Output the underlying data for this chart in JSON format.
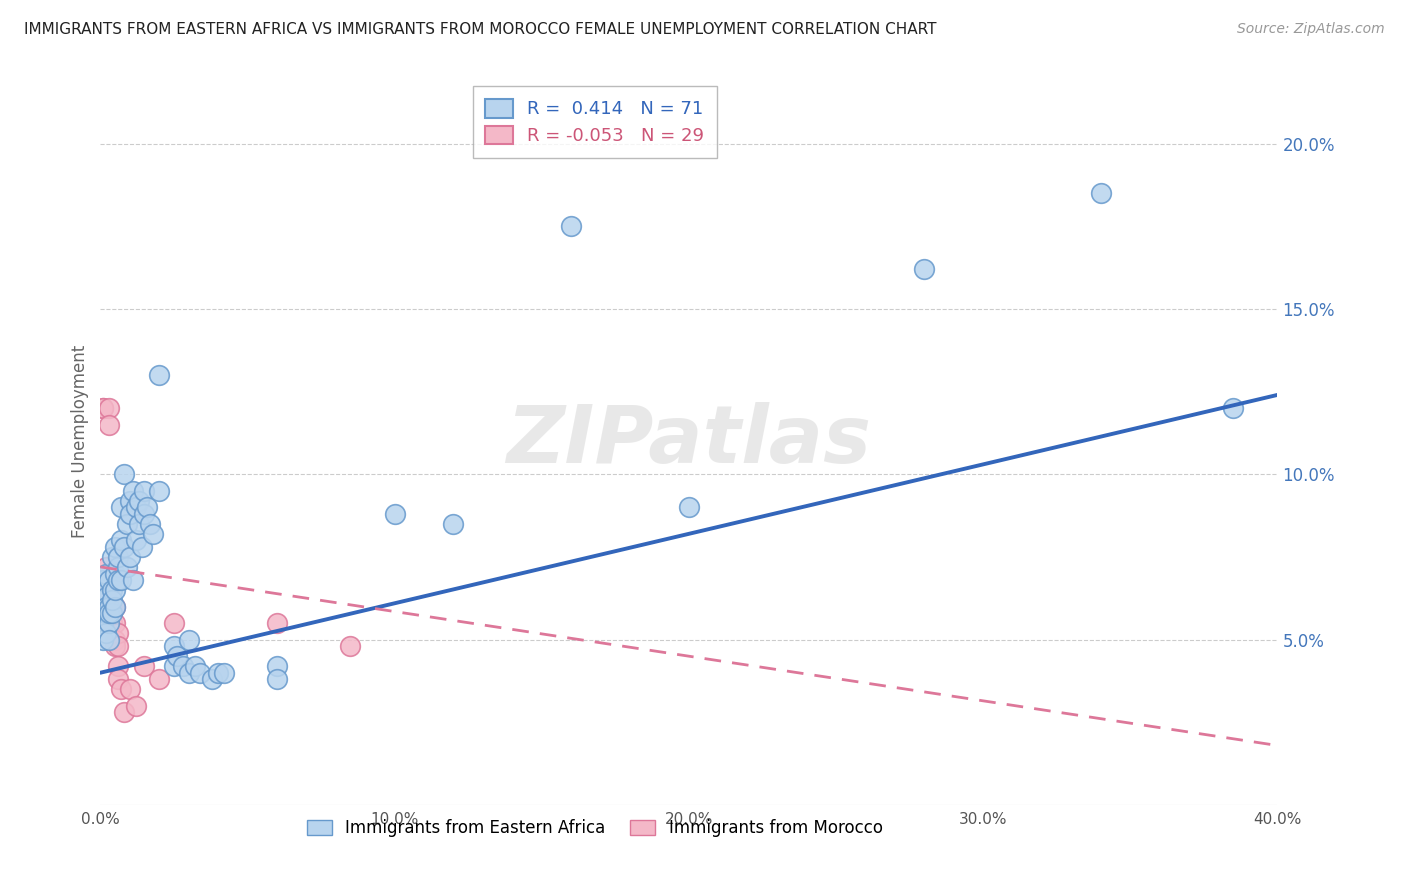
{
  "title": "IMMIGRANTS FROM EASTERN AFRICA VS IMMIGRANTS FROM MOROCCO FEMALE UNEMPLOYMENT CORRELATION CHART",
  "source": "Source: ZipAtlas.com",
  "xlabel_blue": "Immigrants from Eastern Africa",
  "xlabel_pink": "Immigrants from Morocco",
  "ylabel": "Female Unemployment",
  "r_blue": 0.414,
  "n_blue": 71,
  "r_pink": -0.053,
  "n_pink": 29,
  "color_blue": "#b8d4ee",
  "color_blue_edge": "#6699cc",
  "color_blue_line": "#3366bb",
  "color_pink": "#f4b8c8",
  "color_pink_edge": "#dd7799",
  "color_pink_line": "#dd7799",
  "watermark": "ZIPatlas",
  "blue_scatter": [
    [
      0.001,
      0.068
    ],
    [
      0.001,
      0.06
    ],
    [
      0.001,
      0.055
    ],
    [
      0.001,
      0.05
    ],
    [
      0.001,
      0.065
    ],
    [
      0.001,
      0.062
    ],
    [
      0.002,
      0.07
    ],
    [
      0.002,
      0.058
    ],
    [
      0.002,
      0.063
    ],
    [
      0.002,
      0.06
    ],
    [
      0.002,
      0.052
    ],
    [
      0.003,
      0.068
    ],
    [
      0.003,
      0.055
    ],
    [
      0.003,
      0.06
    ],
    [
      0.003,
      0.058
    ],
    [
      0.003,
      0.05
    ],
    [
      0.004,
      0.075
    ],
    [
      0.004,
      0.065
    ],
    [
      0.004,
      0.058
    ],
    [
      0.004,
      0.062
    ],
    [
      0.005,
      0.07
    ],
    [
      0.005,
      0.078
    ],
    [
      0.005,
      0.06
    ],
    [
      0.005,
      0.065
    ],
    [
      0.006,
      0.072
    ],
    [
      0.006,
      0.068
    ],
    [
      0.006,
      0.075
    ],
    [
      0.007,
      0.08
    ],
    [
      0.007,
      0.09
    ],
    [
      0.007,
      0.068
    ],
    [
      0.008,
      0.1
    ],
    [
      0.008,
      0.078
    ],
    [
      0.009,
      0.085
    ],
    [
      0.009,
      0.072
    ],
    [
      0.01,
      0.092
    ],
    [
      0.01,
      0.088
    ],
    [
      0.01,
      0.075
    ],
    [
      0.011,
      0.095
    ],
    [
      0.011,
      0.068
    ],
    [
      0.012,
      0.09
    ],
    [
      0.012,
      0.08
    ],
    [
      0.013,
      0.092
    ],
    [
      0.013,
      0.085
    ],
    [
      0.014,
      0.078
    ],
    [
      0.015,
      0.088
    ],
    [
      0.015,
      0.095
    ],
    [
      0.016,
      0.09
    ],
    [
      0.017,
      0.085
    ],
    [
      0.018,
      0.082
    ],
    [
      0.02,
      0.13
    ],
    [
      0.02,
      0.095
    ],
    [
      0.025,
      0.042
    ],
    [
      0.025,
      0.048
    ],
    [
      0.026,
      0.045
    ],
    [
      0.028,
      0.042
    ],
    [
      0.03,
      0.04
    ],
    [
      0.03,
      0.05
    ],
    [
      0.032,
      0.042
    ],
    [
      0.034,
      0.04
    ],
    [
      0.038,
      0.038
    ],
    [
      0.04,
      0.04
    ],
    [
      0.042,
      0.04
    ],
    [
      0.06,
      0.042
    ],
    [
      0.06,
      0.038
    ],
    [
      0.1,
      0.088
    ],
    [
      0.12,
      0.085
    ],
    [
      0.16,
      0.175
    ],
    [
      0.2,
      0.09
    ],
    [
      0.28,
      0.162
    ],
    [
      0.34,
      0.185
    ],
    [
      0.385,
      0.12
    ]
  ],
  "pink_scatter": [
    [
      0.001,
      0.12
    ],
    [
      0.001,
      0.12
    ],
    [
      0.002,
      0.072
    ],
    [
      0.002,
      0.068
    ],
    [
      0.003,
      0.12
    ],
    [
      0.003,
      0.115
    ],
    [
      0.003,
      0.065
    ],
    [
      0.003,
      0.062
    ],
    [
      0.004,
      0.068
    ],
    [
      0.004,
      0.06
    ],
    [
      0.004,
      0.058
    ],
    [
      0.004,
      0.055
    ],
    [
      0.005,
      0.06
    ],
    [
      0.005,
      0.055
    ],
    [
      0.005,
      0.05
    ],
    [
      0.005,
      0.048
    ],
    [
      0.006,
      0.052
    ],
    [
      0.006,
      0.048
    ],
    [
      0.006,
      0.042
    ],
    [
      0.006,
      0.038
    ],
    [
      0.007,
      0.035
    ],
    [
      0.008,
      0.028
    ],
    [
      0.01,
      0.035
    ],
    [
      0.012,
      0.03
    ],
    [
      0.015,
      0.042
    ],
    [
      0.02,
      0.038
    ],
    [
      0.025,
      0.055
    ],
    [
      0.06,
      0.055
    ],
    [
      0.085,
      0.048
    ]
  ],
  "xlim": [
    0.0,
    0.4
  ],
  "ylim": [
    0.0,
    0.22
  ],
  "xticks": [
    0.0,
    0.1,
    0.2,
    0.3,
    0.4
  ],
  "yticks_right": [
    0.05,
    0.1,
    0.15,
    0.2
  ],
  "ytick_labels_right": [
    "5.0%",
    "10.0%",
    "15.0%",
    "20.0%"
  ],
  "xtick_labels": [
    "0.0%",
    "10.0%",
    "20.0%",
    "30.0%",
    "40.0%"
  ],
  "blue_line_x": [
    0.0,
    0.4
  ],
  "blue_line_y": [
    0.04,
    0.124
  ],
  "pink_line_x": [
    0.0,
    0.4
  ],
  "pink_line_y": [
    0.072,
    0.018
  ]
}
